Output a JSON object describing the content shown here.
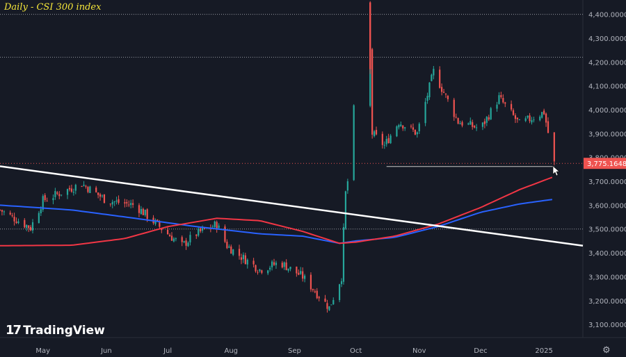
{
  "chart_data": {
    "type": "candlestick",
    "title": "Daily - CSI 300 index",
    "ylim": [
      3045,
      4460
    ],
    "y_ticks": [
      3100,
      3200,
      3300,
      3400,
      3500,
      3600,
      3700,
      3800,
      3900,
      4000,
      4100,
      4200,
      4300,
      4400
    ],
    "y_tick_labels": [
      "3,100.0000",
      "3,200.0000",
      "3,300.0000",
      "3,400.0000",
      "3,500.0000",
      "3,600.0000",
      "3,700.0000",
      "3,800.0000",
      "3,900.0000",
      "4,000.0000",
      "4,100.0000",
      "4,200.0000",
      "4,300.0000",
      "4,400.0000"
    ],
    "x_tick_labels": [
      "May",
      "Jun",
      "Jul",
      "Aug",
      "Sep",
      "Oct",
      "Nov",
      "Dec",
      "2025"
    ],
    "x_tick_dates": [
      "2024-05-01",
      "2024-06-01",
      "2024-07-01",
      "2024-08-01",
      "2024-09-01",
      "2024-10-01",
      "2024-11-01",
      "2024-12-01",
      "2025-01-01"
    ],
    "last_price": 3775.1648,
    "last_price_label": "3,775.1648",
    "ref_levels": [
      4400,
      4220,
      3500
    ],
    "horizontal_segment": {
      "value": 3762,
      "from_date": "2024-10-16",
      "to_date": "2025-01-06"
    },
    "trendline": {
      "from": [
        "2024-04-10",
        3763
      ],
      "to": [
        "2025-01-20",
        3430
      ]
    },
    "ma_fast_anchors": [
      [
        "2024-04-10",
        3430
      ],
      [
        "2024-05-15",
        3432
      ],
      [
        "2024-06-10",
        3460
      ],
      [
        "2024-07-01",
        3510
      ],
      [
        "2024-07-25",
        3545
      ],
      [
        "2024-08-15",
        3535
      ],
      [
        "2024-09-05",
        3490
      ],
      [
        "2024-09-23",
        3440
      ],
      [
        "2024-10-01",
        3445
      ],
      [
        "2024-10-20",
        3470
      ],
      [
        "2024-11-10",
        3520
      ],
      [
        "2024-12-01",
        3590
      ],
      [
        "2024-12-20",
        3665
      ],
      [
        "2025-01-06",
        3720
      ]
    ],
    "ma_slow_anchors": [
      [
        "2024-04-10",
        3600
      ],
      [
        "2024-05-15",
        3580
      ],
      [
        "2024-06-15",
        3545
      ],
      [
        "2024-07-15",
        3510
      ],
      [
        "2024-08-15",
        3480
      ],
      [
        "2024-09-05",
        3470
      ],
      [
        "2024-09-23",
        3440
      ],
      [
        "2024-10-01",
        3450
      ],
      [
        "2024-10-20",
        3465
      ],
      [
        "2024-11-10",
        3510
      ],
      [
        "2024-12-01",
        3570
      ],
      [
        "2024-12-20",
        3605
      ],
      [
        "2025-01-06",
        3625
      ]
    ],
    "close_anchors": [
      [
        "2024-04-10",
        3580
      ],
      [
        "2024-04-25",
        3505
      ],
      [
        "2024-05-01",
        3620
      ],
      [
        "2024-05-20",
        3690
      ],
      [
        "2024-06-01",
        3620
      ],
      [
        "2024-06-15",
        3600
      ],
      [
        "2024-07-01",
        3480
      ],
      [
        "2024-07-08",
        3430
      ],
      [
        "2024-07-15",
        3480
      ],
      [
        "2024-07-25",
        3520
      ],
      [
        "2024-07-30",
        3430
      ],
      [
        "2024-08-05",
        3390
      ],
      [
        "2024-08-15",
        3330
      ],
      [
        "2024-08-25",
        3360
      ],
      [
        "2024-09-05",
        3300
      ],
      [
        "2024-09-18",
        3170
      ],
      [
        "2024-09-24",
        3300
      ],
      [
        "2024-09-25",
        3490
      ],
      [
        "2024-09-26",
        3650
      ],
      [
        "2024-09-27",
        3700
      ],
      [
        "2024-09-30",
        4000
      ],
      [
        "2024-10-08",
        4250
      ],
      [
        "2024-10-09",
        3900
      ],
      [
        "2024-10-15",
        3850
      ],
      [
        "2024-10-22",
        3950
      ],
      [
        "2024-10-31",
        3900
      ],
      [
        "2024-11-08",
        4160
      ],
      [
        "2024-11-20",
        3950
      ],
      [
        "2024-12-01",
        3920
      ],
      [
        "2024-12-10",
        4050
      ],
      [
        "2024-12-20",
        3940
      ],
      [
        "2025-01-01",
        3990
      ],
      [
        "2025-01-06",
        3775
      ]
    ]
  },
  "brand": {
    "name": "TradingView",
    "logo_text": "17"
  },
  "colors": {
    "bg": "#161a25",
    "up": "#26a69a",
    "down": "#ef5350",
    "ma_fast": "#f23645",
    "ma_slow": "#2962ff",
    "trend": "#ffffff",
    "title": "#f5e63a",
    "axis_text": "#b2b5be"
  },
  "icons": {
    "settings": "gear-icon"
  }
}
